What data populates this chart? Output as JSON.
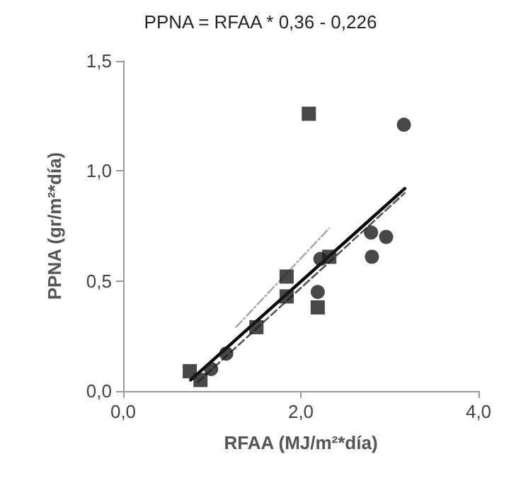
{
  "chart_data": {
    "type": "scatter",
    "title": "PPNA = RFAA * 0,36 - 0,226",
    "xlabel": "RFAA (MJ/m²*día)",
    "ylabel": "PPNA (gr/m²*día)",
    "xlim": [
      0,
      4
    ],
    "xticks": [
      {
        "value": 0,
        "label": "0,0"
      },
      {
        "value": 2,
        "label": "2,0"
      },
      {
        "value": 4,
        "label": "4,0"
      }
    ],
    "ylim": [
      0,
      1.5
    ],
    "yticks": [
      {
        "value": 0,
        "label": "0,0"
      },
      {
        "value": 0.5,
        "label": "0,5"
      },
      {
        "value": 1,
        "label": "1,0"
      },
      {
        "value": 1.5,
        "label": "1,5"
      }
    ],
    "grid": false,
    "series": [
      {
        "marker": "square",
        "color": "#1a1a1a",
        "x": [
          0.75,
          0.87,
          1.5,
          1.84,
          1.84,
          2.19,
          2.32,
          2.09
        ],
        "values": [
          0.09,
          0.05,
          0.29,
          0.52,
          0.43,
          0.38,
          0.61,
          1.26
        ]
      },
      {
        "marker": "circle",
        "color": "#1a1a1a",
        "x": [
          0.99,
          1.16,
          2.19,
          2.22,
          2.79,
          2.8,
          2.96,
          3.16
        ],
        "values": [
          0.1,
          0.17,
          0.45,
          0.6,
          0.72,
          0.61,
          0.7,
          1.21
        ]
      },
      {
        "type": "line",
        "marker": "none",
        "line_style": "solid",
        "color": "#000000",
        "x": [
          0.76,
          3.17
        ],
        "values": [
          0.05,
          0.92
        ]
      },
      {
        "type": "line",
        "marker": "none",
        "line_style": "dashed",
        "color": "#555555",
        "x": [
          0.84,
          3.17
        ],
        "values": [
          0.04,
          0.9
        ]
      },
      {
        "type": "line",
        "marker": "none",
        "line_style": "dotted",
        "color": "#aaaaaa",
        "x": [
          1.27,
          2.32
        ],
        "values": [
          0.29,
          0.74
        ]
      }
    ]
  }
}
